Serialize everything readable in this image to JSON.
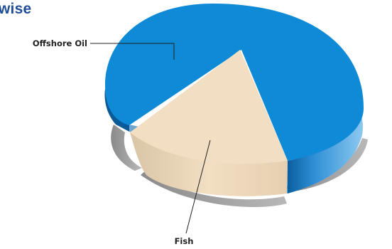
{
  "title": "wise",
  "chart_data": {
    "type": "pie",
    "title": "wise",
    "slices": [
      {
        "label": "Offshore Oil",
        "value": 83,
        "color": "#0f8ad6"
      },
      {
        "label": "Fish",
        "value": 17,
        "color": "#f2dec2"
      }
    ],
    "style": "3d-exploded",
    "legend": "none"
  }
}
